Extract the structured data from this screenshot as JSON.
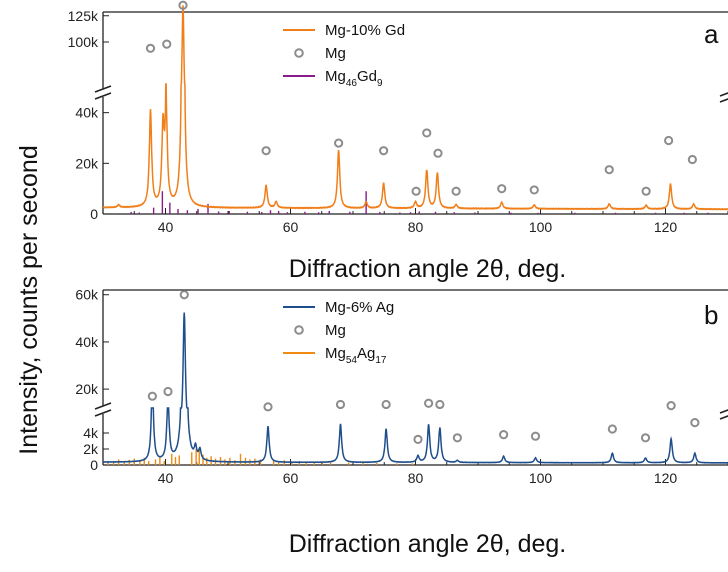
{
  "ylabel": "Intensity, counts per second",
  "chart_data": [
    {
      "panel": "a",
      "type": "line",
      "xlabel": "Diffraction angle 2θ, deg.",
      "xlim": [
        30,
        130
      ],
      "xticks": [
        40,
        60,
        80,
        100,
        120
      ],
      "y_axis_break": true,
      "y_upper_ticks": [
        {
          "v": 100000,
          "label": "100k"
        },
        {
          "v": 125000,
          "label": "125k"
        }
      ],
      "y_lower_ticks": [
        {
          "v": 0,
          "label": "0"
        },
        {
          "v": 20000,
          "label": "20k"
        },
        {
          "v": 40000,
          "label": "40k"
        }
      ],
      "legend": [
        {
          "label": "Mg-10% Gd",
          "style": "line",
          "color": "#f07f1a"
        },
        {
          "label": "Mg",
          "style": "circle",
          "color": "#8c8c8c"
        },
        {
          "label": "Mg",
          "sub1": "46",
          "mid": "Gd",
          "sub2": "9",
          "style": "line",
          "color": "#8b1a8b"
        }
      ],
      "series": [
        {
          "name": "Mg-10% Gd",
          "color": "#f07f1a",
          "baseline": 2500,
          "peaks": [
            [
              32.5,
              1000
            ],
            [
              37.6,
              38000
            ],
            [
              39.6,
              30000
            ],
            [
              40.1,
              38000
            ],
            [
              42.8,
              132000
            ],
            [
              56.1,
              9000
            ],
            [
              57.7,
              2500
            ],
            [
              67.7,
              23000
            ],
            [
              72.1,
              2500
            ],
            [
              74.9,
              10000
            ],
            [
              80.0,
              2500
            ],
            [
              81.8,
              15000
            ],
            [
              83.5,
              14000
            ],
            [
              86.5,
              1500
            ],
            [
              93.8,
              2500
            ],
            [
              99.0,
              1500
            ],
            [
              111.0,
              2000
            ],
            [
              116.9,
              1500
            ],
            [
              120.8,
              10000
            ],
            [
              124.5,
              2000
            ]
          ]
        },
        {
          "name": "Mg46Gd9",
          "style": "sticks",
          "color": "#8b1a8b",
          "sticks": [
            [
              34.5,
              800
            ],
            [
              35.8,
              600
            ],
            [
              38.1,
              2500
            ],
            [
              39.5,
              9000
            ],
            [
              40.7,
              4500
            ],
            [
              42.0,
              2000
            ],
            [
              43.5,
              1500
            ],
            [
              45.2,
              2000
            ],
            [
              46.8,
              4000
            ],
            [
              48.5,
              1000
            ],
            [
              50.2,
              1200
            ],
            [
              53.1,
              900
            ],
            [
              55.4,
              800
            ],
            [
              56.8,
              1500
            ],
            [
              58.1,
              1200
            ],
            [
              59.5,
              700
            ],
            [
              62.3,
              900
            ],
            [
              64.5,
              700
            ],
            [
              66.2,
              1200
            ],
            [
              69.5,
              900
            ],
            [
              72.1,
              9000
            ],
            [
              74.3,
              800
            ],
            [
              77.5,
              600
            ],
            [
              79.2,
              700
            ],
            [
              80.6,
              1000
            ],
            [
              83.2,
              900
            ],
            [
              86.2,
              700
            ],
            [
              89.5,
              600
            ],
            [
              95.3,
              500
            ],
            [
              99.6,
              500
            ],
            [
              105.5,
              500
            ],
            [
              112.0,
              500
            ],
            [
              118.4,
              500
            ],
            [
              123.0,
              500
            ],
            [
              126.8,
              500
            ]
          ]
        }
      ],
      "mg_markers": [
        [
          37.6,
          94000
        ],
        [
          40.2,
          98000
        ],
        [
          42.8,
          135000
        ],
        [
          56.1,
          25000
        ],
        [
          67.7,
          28000
        ],
        [
          74.9,
          25000
        ],
        [
          80.1,
          9000
        ],
        [
          81.8,
          32000
        ],
        [
          83.6,
          24000
        ],
        [
          86.5,
          9000
        ],
        [
          93.8,
          10000
        ],
        [
          99.0,
          9500
        ],
        [
          111.0,
          17500
        ],
        [
          116.9,
          9000
        ],
        [
          120.5,
          29000
        ],
        [
          124.3,
          21500
        ]
      ],
      "letter": "a"
    },
    {
      "panel": "b",
      "type": "line",
      "xlabel": "Diffraction angle 2θ, deg.",
      "xlim": [
        30,
        130
      ],
      "xticks": [
        40,
        60,
        80,
        100,
        120
      ],
      "y_axis_break": true,
      "y_upper_ticks": [
        {
          "v": 20000,
          "label": "20k"
        },
        {
          "v": 40000,
          "label": "40k"
        },
        {
          "v": 60000,
          "label": "60k"
        }
      ],
      "y_lower_ticks": [
        {
          "v": 0,
          "label": "0"
        },
        {
          "v": 2000,
          "label": "2k"
        },
        {
          "v": 4000,
          "label": "4k"
        }
      ],
      "legend": [
        {
          "label": "Mg-6% Ag",
          "style": "line",
          "color": "#1f4e8c"
        },
        {
          "label": "Mg",
          "style": "circle",
          "color": "#8c8c8c"
        },
        {
          "label": "Mg",
          "sub1": "54",
          "mid": "Ag",
          "sub2": "17",
          "style": "line",
          "color": "#f08a10"
        }
      ],
      "series": [
        {
          "name": "Mg-6% Ag",
          "color": "#1f4e8c",
          "baseline": 350,
          "peaks": [
            [
              37.9,
              9500
            ],
            [
              40.4,
              7800
            ],
            [
              43.0,
              52000
            ],
            [
              44.8,
              1500
            ],
            [
              45.5,
              1300
            ],
            [
              56.4,
              4500
            ],
            [
              68.0,
              4800
            ],
            [
              75.3,
              4200
            ],
            [
              80.4,
              800
            ],
            [
              82.1,
              4700
            ],
            [
              83.9,
              4300
            ],
            [
              86.7,
              250
            ],
            [
              94.1,
              800
            ],
            [
              99.2,
              600
            ],
            [
              111.5,
              1200
            ],
            [
              116.8,
              600
            ],
            [
              120.9,
              3000
            ],
            [
              124.7,
              1200
            ]
          ]
        },
        {
          "name": "Mg54Ag17",
          "style": "sticks",
          "color": "#f08a10",
          "sticks": [
            [
              30.8,
              500
            ],
            [
              31.7,
              400
            ],
            [
              32.5,
              700
            ],
            [
              33.4,
              500
            ],
            [
              34.2,
              650
            ],
            [
              35.0,
              800
            ],
            [
              35.9,
              600
            ],
            [
              36.6,
              900
            ],
            [
              37.3,
              500
            ],
            [
              38.4,
              700
            ],
            [
              39.1,
              1100
            ],
            [
              39.8,
              500
            ],
            [
              41.0,
              1400
            ],
            [
              41.6,
              1000
            ],
            [
              42.2,
              1200
            ],
            [
              44.2,
              1600
            ],
            [
              44.9,
              2000
            ],
            [
              45.4,
              2100
            ],
            [
              46.0,
              1300
            ],
            [
              46.6,
              900
            ],
            [
              47.3,
              1100
            ],
            [
              48.0,
              800
            ],
            [
              48.8,
              1000
            ],
            [
              49.5,
              700
            ],
            [
              50.3,
              900
            ],
            [
              51.1,
              600
            ],
            [
              52.0,
              1400
            ],
            [
              52.8,
              900
            ],
            [
              53.5,
              700
            ],
            [
              54.3,
              800
            ],
            [
              55.2,
              700
            ],
            [
              57.3,
              600
            ],
            [
              58.1,
              500
            ],
            [
              59.0,
              600
            ],
            [
              60.2,
              400
            ],
            [
              61.4,
              500
            ],
            [
              62.5,
              350
            ],
            [
              63.8,
              400
            ],
            [
              65.1,
              350
            ],
            [
              66.4,
              300
            ],
            [
              69.3,
              300
            ],
            [
              71.6,
              250
            ],
            [
              73.8,
              250
            ],
            [
              77.0,
              200
            ],
            [
              79.5,
              200
            ]
          ]
        }
      ],
      "mg_markers": [
        [
          37.9,
          17000
        ],
        [
          40.4,
          19000
        ],
        [
          43.0,
          60000
        ],
        [
          56.4,
          12500
        ],
        [
          68.0,
          13500
        ],
        [
          75.3,
          13500
        ],
        [
          80.4,
          3200
        ],
        [
          82.1,
          14000
        ],
        [
          83.9,
          13500
        ],
        [
          86.7,
          3400
        ],
        [
          94.1,
          3800
        ],
        [
          99.2,
          3600
        ],
        [
          111.5,
          4500
        ],
        [
          116.8,
          3400
        ],
        [
          120.9,
          13000
        ],
        [
          124.7,
          5300
        ]
      ],
      "letter": "b"
    }
  ]
}
